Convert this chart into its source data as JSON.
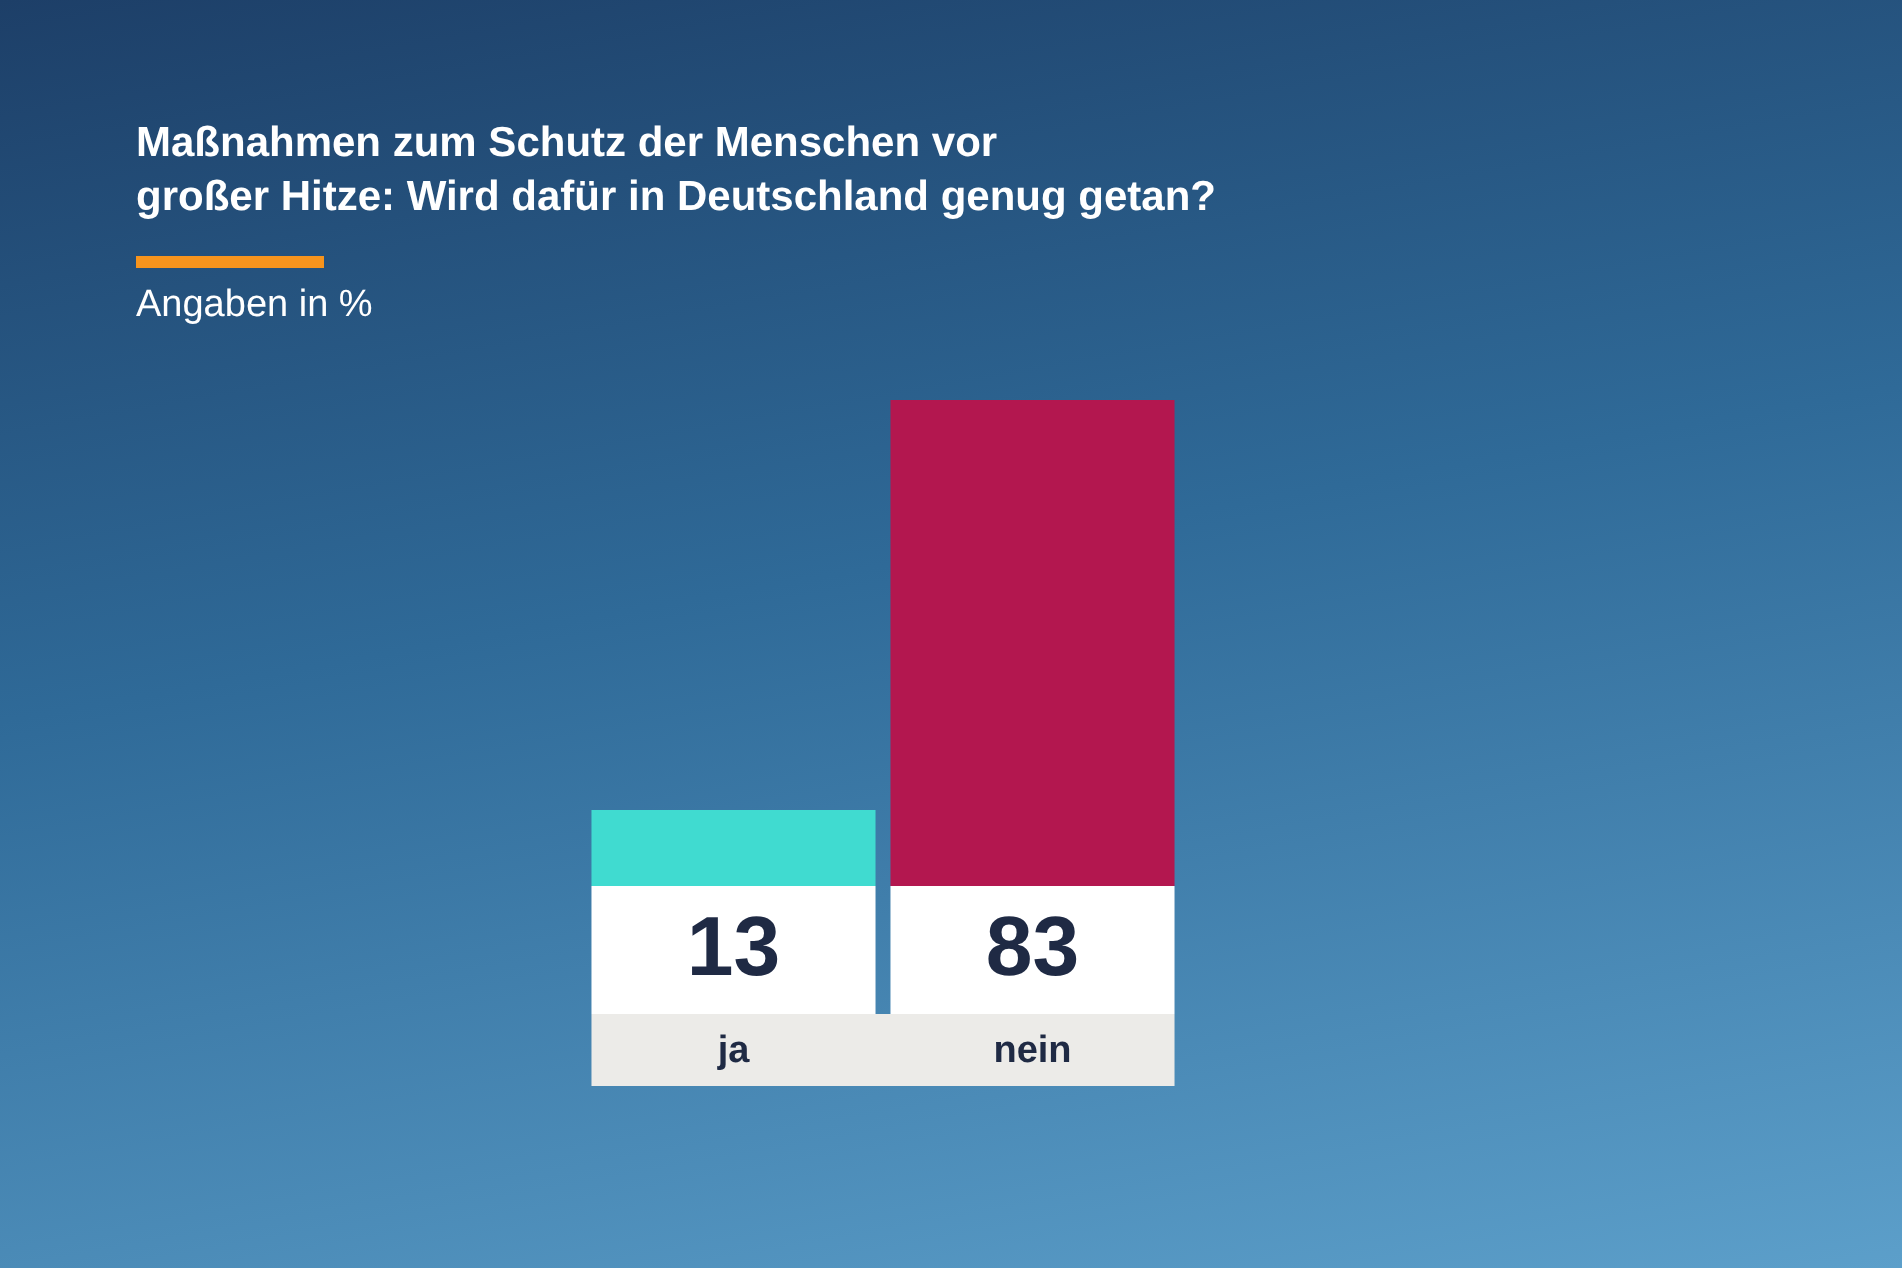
{
  "chart_data": {
    "type": "bar",
    "title": "Maßnahmen zum Schutz der Menschen vor\ngroßer Hitze: Wird dafür in Deutschland genug getan?",
    "subtitle": "Angaben in %",
    "categories": [
      "ja",
      "nein"
    ],
    "values": [
      13,
      83
    ],
    "colors": [
      "#40dbd0",
      "#b3174f"
    ],
    "data_labels": true
  }
}
